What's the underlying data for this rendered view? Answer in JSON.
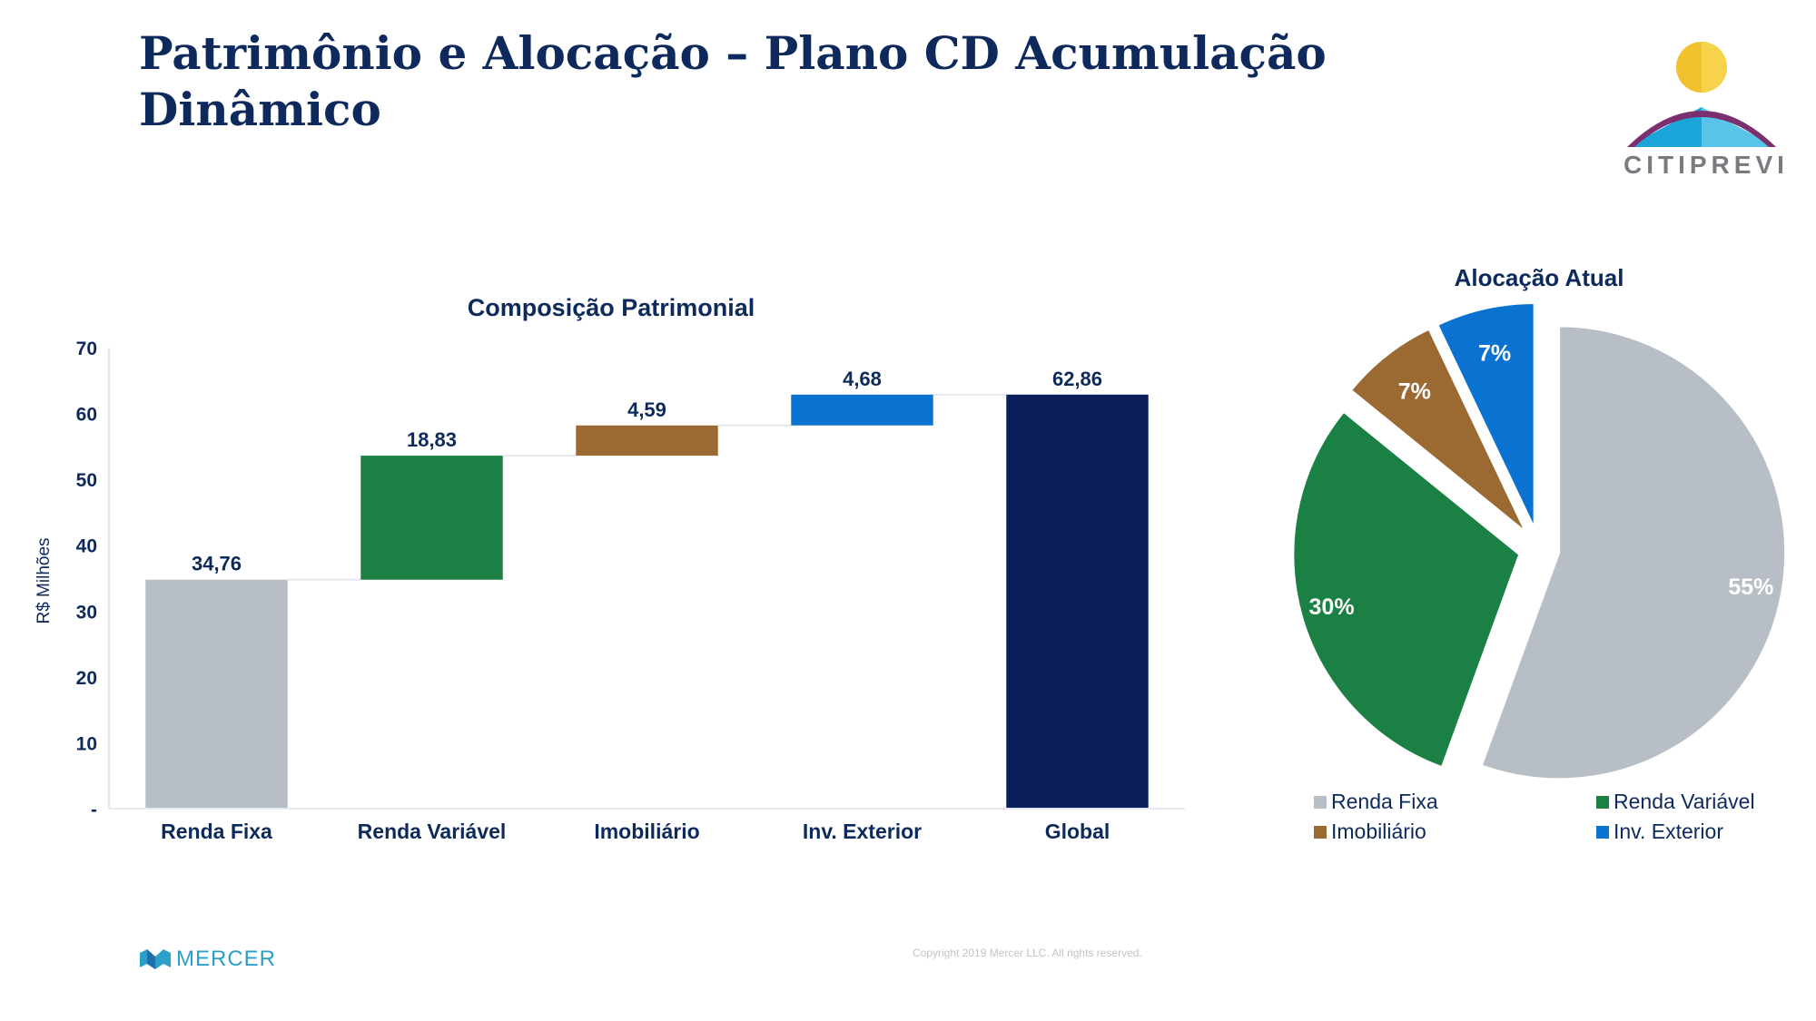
{
  "slide": {
    "title_line1": "Patrimônio e Alocação – Plano CD Acumulação",
    "title_line2": "Dinâmico",
    "logo_text": "CITIPREVI",
    "footer_logo_text": "MERCER",
    "copyright": "Copyright 2019 Mercer LLC. All rights reserved."
  },
  "colors": {
    "renda_fixa": "#b8bec6",
    "renda_variavel": "#1b8043",
    "imobiliario": "#9a6a32",
    "inv_exterior": "#0a72d0",
    "global": "#0a1f5c",
    "text": "#0e2a5c"
  },
  "chart_data": [
    {
      "type": "bar",
      "subtype": "waterfall",
      "title": "Composição Patrimonial",
      "ylabel": "R$ Milhões",
      "xlabel": "",
      "categories": [
        "Renda Fixa",
        "Renda Variável",
        "Imobiliário",
        "Inv. Exterior",
        "Global"
      ],
      "values": [
        34.76,
        18.83,
        4.59,
        4.68,
        62.86
      ],
      "data_labels": [
        "34,76",
        "18,83",
        "4,59",
        "4,68",
        "62,86"
      ],
      "is_total": [
        false,
        false,
        false,
        false,
        true
      ],
      "ylim": [
        0,
        70
      ],
      "yticks": [
        0,
        10,
        20,
        30,
        40,
        50,
        60,
        70
      ],
      "ytick_labels": [
        "-",
        "10",
        "20",
        "30",
        "40",
        "50",
        "60",
        "70"
      ],
      "grid": false,
      "legend": "none"
    },
    {
      "type": "pie",
      "title": "Alocação Atual",
      "labels": [
        "Renda Fixa",
        "Renda Variável",
        "Imobiliário",
        "Inv. Exterior"
      ],
      "values": [
        55,
        30,
        7,
        7
      ],
      "value_labels": [
        "55%",
        "30%",
        "7%",
        "7%"
      ],
      "exploded": true,
      "legend": "bottom"
    }
  ]
}
